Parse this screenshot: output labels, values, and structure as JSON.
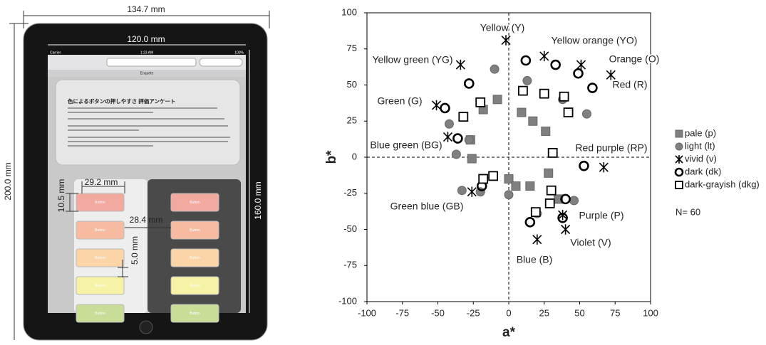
{
  "device": {
    "dimensions": {
      "body_width": "134.7 mm",
      "screen_width": "120.0 mm",
      "body_height": "200.0 mm",
      "screen_height": "160.0 mm",
      "button_width": "29.2 mm",
      "button_height": "10.5 mm",
      "button_gap_horizontal": "28.4 mm",
      "button_gap_vertical": "5.0 mm"
    },
    "screen": {
      "status": [
        "Carrier",
        "1:23 AM",
        "100%"
      ],
      "tab": "Enquete",
      "survey_title": "色によるボタンの押しやすさ 評価アンケート",
      "button_label": "Button"
    }
  },
  "chart_data": {
    "type": "scatter",
    "x_label": "a*",
    "y_label": "b*",
    "xlim": [
      -100,
      100
    ],
    "xticks": [
      -100,
      -75,
      -50,
      -25,
      0,
      25,
      50,
      75,
      100
    ],
    "ylim": [
      -100,
      100
    ],
    "yticks": [
      -100,
      -75,
      -50,
      -25,
      0,
      25,
      50,
      75,
      100
    ],
    "series": [
      {
        "name": "pale (p)",
        "marker": "square-filled",
        "color": "#808080",
        "x": [
          -8,
          -27,
          -26,
          -18,
          9,
          17,
          26,
          0,
          5,
          15,
          28,
          35
        ],
        "y": [
          40,
          12,
          -1,
          33,
          31,
          25,
          18,
          -15,
          -20,
          -20,
          -11,
          -29
        ]
      },
      {
        "name": "light (lt)",
        "marker": "circle-filled",
        "color": "#808080",
        "x": [
          -10,
          13,
          38,
          55,
          -42,
          -37,
          -28,
          -33,
          -20,
          0,
          46,
          20
        ],
        "y": [
          61,
          53,
          40,
          30,
          23,
          2,
          12,
          -23,
          -24,
          -26,
          -30,
          -39
        ]
      },
      {
        "name": "vivid (v)",
        "marker": "asterisk",
        "color": "#000000",
        "x": [
          -2,
          25,
          -34,
          51,
          72,
          -51,
          -43,
          -26,
          67,
          38,
          40,
          20
        ],
        "y": [
          81,
          70,
          64,
          64,
          57,
          36,
          14,
          -24,
          -7,
          -40,
          -50,
          -57
        ]
      },
      {
        "name": "dark (dk)",
        "marker": "circle-open",
        "color": "#000000",
        "x": [
          12,
          33,
          49,
          59,
          -28,
          -45,
          -36,
          -19,
          53,
          40,
          38,
          15
        ],
        "y": [
          67,
          64,
          58,
          48,
          51,
          34,
          13,
          -20,
          -6,
          -29,
          -42,
          -45
        ]
      },
      {
        "name": "dark-grayish (dkg)",
        "marker": "square-open",
        "color": "#000000",
        "x": [
          10,
          25,
          39,
          42,
          -20,
          -32,
          31,
          -11,
          30,
          29,
          19,
          -18
        ],
        "y": [
          46,
          44,
          42,
          31,
          38,
          28,
          3,
          -13,
          -23,
          -32,
          -38,
          -15
        ]
      }
    ],
    "annotations": [
      "Yellow (Y)",
      "Yellow orange (YO)",
      "Yellow green (YG)",
      "Orange (O)",
      "Red (R)",
      "Green (G)",
      "Blue green (BG)",
      "Red purple (RP)",
      "Green blue (GB)",
      "Purple (P)",
      "Violet (V)",
      "Blue (B)"
    ],
    "sample_size": "N= 60"
  }
}
